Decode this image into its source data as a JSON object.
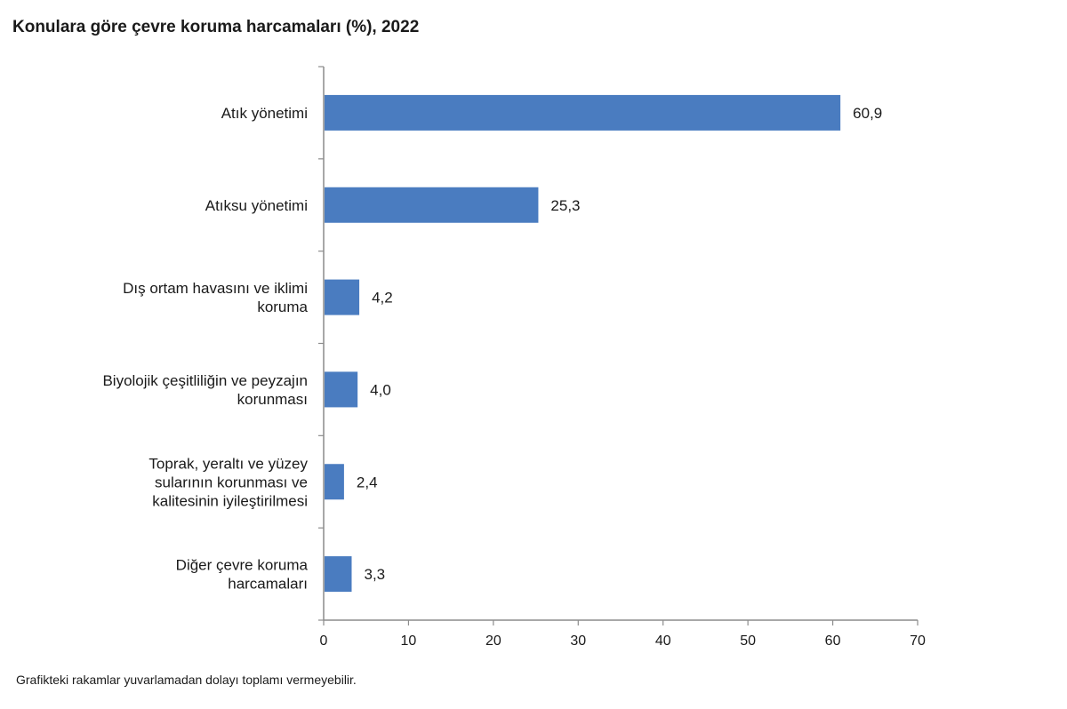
{
  "chart_data": {
    "type": "bar",
    "orientation": "horizontal",
    "title": "Konulara göre çevre koruma harcamaları (%), 2022",
    "categories": [
      [
        "Atık yönetimi"
      ],
      [
        "Atıksu yönetimi"
      ],
      [
        "Dış ortam havasını ve iklimi",
        "koruma"
      ],
      [
        "Biyolojik çeşitliliğin ve peyzajın",
        "korunması"
      ],
      [
        "Toprak, yeraltı ve yüzey",
        "sularının korunması ve",
        "kalitesinin iyileştirilmesi"
      ],
      [
        "Diğer çevre koruma",
        "harcamaları"
      ]
    ],
    "values": [
      60.9,
      25.3,
      4.2,
      4.0,
      2.4,
      3.3
    ],
    "value_labels": [
      "60,9",
      "25,3",
      "4,2",
      "4,0",
      "2,4",
      "3,3"
    ],
    "xlim": [
      0,
      70
    ],
    "xticks": [
      0,
      10,
      20,
      30,
      40,
      50,
      60,
      70
    ],
    "bar_color": "#4a7cc0",
    "grid": false,
    "legend": "none",
    "footnote": "Grafikteki rakamlar yuvarlamadan dolayı toplamı vermeyebilir."
  }
}
